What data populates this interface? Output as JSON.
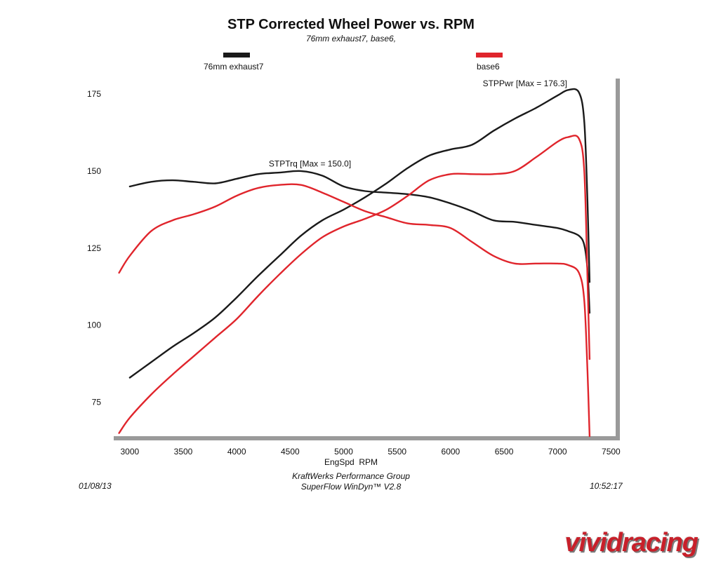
{
  "chart_data": {
    "type": "line",
    "title": "STP Corrected Wheel Power vs. RPM",
    "subtitle": "76mm exhaust7, base6,",
    "xlabel": "EngSpd  RPM",
    "ylabel": "",
    "xlim": [
      2850,
      7550
    ],
    "ylim": [
      64,
      180
    ],
    "x_ticks": [
      3000,
      3500,
      4000,
      4500,
      5000,
      5500,
      6000,
      6500,
      7000,
      7500
    ],
    "y_ticks": [
      75,
      100,
      125,
      150,
      175
    ],
    "grid": false,
    "legend": [
      {
        "name": "76mm exhaust7",
        "color": "#1a1a1a"
      },
      {
        "name": "base6",
        "color": "#e0252c"
      }
    ],
    "annotations": [
      {
        "text": "STPPwr [Max = 176.3]",
        "x": 6300,
        "y": 177.5
      },
      {
        "text": "STPTrq [Max = 150.0]",
        "x": 4300,
        "y": 151.5
      }
    ],
    "series": [
      {
        "name": "76mm exhaust7",
        "quantity": "STPPwr",
        "color": "#1a1a1a",
        "x": [
          3000,
          3200,
          3400,
          3600,
          3800,
          4000,
          4200,
          4400,
          4600,
          4800,
          5000,
          5200,
          5400,
          5600,
          5800,
          6000,
          6200,
          6400,
          6600,
          6800,
          7000,
          7100,
          7200,
          7250,
          7280,
          7300
        ],
        "y": [
          83,
          88,
          93,
          97.5,
          102.5,
          109,
          116,
          122.5,
          129,
          134,
          137.5,
          141.5,
          146,
          151,
          155,
          157,
          158.5,
          163,
          167,
          170.5,
          174.5,
          176.3,
          175.5,
          166,
          140,
          114
        ]
      },
      {
        "name": "76mm exhaust7",
        "quantity": "STPTrq",
        "color": "#1a1a1a",
        "x": [
          3000,
          3200,
          3400,
          3600,
          3800,
          4000,
          4200,
          4400,
          4600,
          4800,
          5000,
          5200,
          5400,
          5600,
          5800,
          6000,
          6200,
          6400,
          6600,
          6800,
          7000,
          7100,
          7200,
          7250,
          7280,
          7300
        ],
        "y": [
          145,
          146.5,
          147,
          146.5,
          146,
          147.5,
          149,
          149.5,
          150,
          148.5,
          145,
          143.5,
          143,
          142.5,
          141.5,
          139.5,
          137,
          134,
          133.5,
          132.5,
          131.5,
          130.5,
          129,
          126,
          118,
          104
        ]
      },
      {
        "name": "base6",
        "quantity": "STPPwr",
        "color": "#e0252c",
        "x": [
          2900,
          3000,
          3200,
          3400,
          3600,
          3800,
          4000,
          4200,
          4400,
          4600,
          4800,
          5000,
          5200,
          5400,
          5600,
          5800,
          6000,
          6200,
          6400,
          6600,
          6800,
          7000,
          7100,
          7200,
          7250,
          7280,
          7300
        ],
        "y": [
          65,
          70,
          77.5,
          84,
          90,
          96,
          102,
          109.5,
          116.5,
          123,
          128.5,
          132,
          134.5,
          137.5,
          142,
          147,
          149,
          149,
          149,
          150,
          154.5,
          159.5,
          161,
          160.5,
          150,
          115,
          89
        ]
      },
      {
        "name": "base6",
        "quantity": "STPTrq",
        "color": "#e0252c",
        "x": [
          2900,
          3000,
          3200,
          3400,
          3600,
          3800,
          4000,
          4200,
          4400,
          4600,
          4800,
          5000,
          5200,
          5400,
          5600,
          5800,
          6000,
          6200,
          6400,
          6600,
          6800,
          7000,
          7100,
          7200,
          7250,
          7280,
          7300
        ],
        "y": [
          117,
          122.5,
          130.5,
          134,
          136,
          138.5,
          142,
          144.5,
          145.5,
          145.5,
          143,
          140,
          137,
          135,
          133,
          132.5,
          131.5,
          127,
          122.5,
          120,
          120,
          120,
          119.5,
          117,
          108,
          85,
          64
        ]
      }
    ]
  },
  "legend_items": [
    {
      "label": "76mm exhaust7"
    },
    {
      "label": "base6"
    }
  ],
  "footer": {
    "date": "01/08/13",
    "time": "10:52:17",
    "line1": "KraftWerks Performance Group",
    "line2": "SuperFlow WinDyn™ V2.8"
  },
  "watermark": "vividracing"
}
